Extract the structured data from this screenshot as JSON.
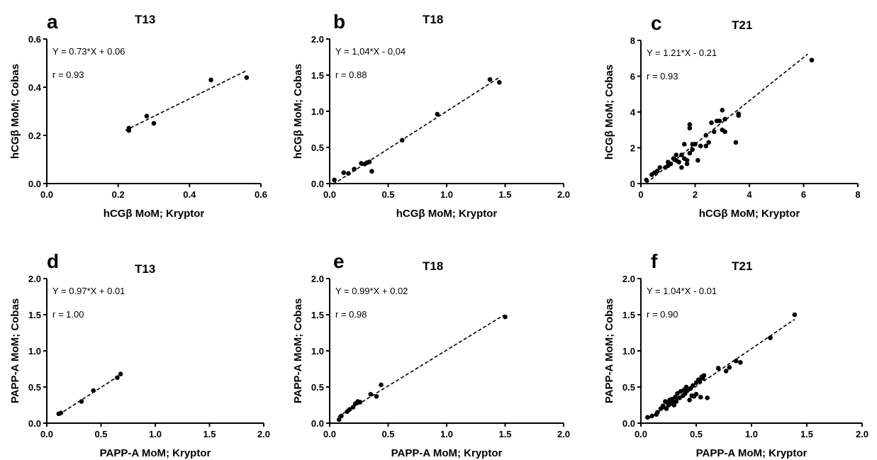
{
  "chart_data": [
    {
      "panel": "a",
      "title": "T13",
      "type": "scatter",
      "xlabel": "hCGβ MoM; Kryptor",
      "ylabel": "hCGβ MoM; Cobas",
      "xlim": [
        0,
        0.6
      ],
      "ylim": [
        0,
        0.6
      ],
      "xticks": [
        "0.0",
        "0.2",
        "0.4",
        "0.6"
      ],
      "yticks": [
        "0.0",
        "0.2",
        "0.4",
        "0.6"
      ],
      "equation": "Y = 0.73*X + 0.06",
      "r": "r = 0.93",
      "fit": {
        "slope": 0.73,
        "intercept": 0.06,
        "x_range": [
          0.22,
          0.56
        ]
      },
      "points": [
        [
          0.23,
          0.23
        ],
        [
          0.23,
          0.22
        ],
        [
          0.28,
          0.28
        ],
        [
          0.3,
          0.25
        ],
        [
          0.46,
          0.43
        ],
        [
          0.56,
          0.44
        ]
      ]
    },
    {
      "panel": "b",
      "title": "T18",
      "type": "scatter",
      "xlabel": "hCGβ MoM; Kryptor",
      "ylabel": "hCGβ MoM; Cobas",
      "xlim": [
        0,
        2.0
      ],
      "ylim": [
        0,
        2.0
      ],
      "xticks": [
        "0.0",
        "0.5",
        "1.0",
        "1.5",
        "2.0"
      ],
      "yticks": [
        "0.0",
        "0.5",
        "1.0",
        "1.5",
        "2.0"
      ],
      "equation": "Y = 1,04*X - 0,04",
      "r": "r = 0.88",
      "fit": {
        "slope": 1.04,
        "intercept": -0.04,
        "x_range": [
          0.03,
          1.46
        ]
      },
      "points": [
        [
          0.04,
          0.05
        ],
        [
          0.12,
          0.15
        ],
        [
          0.16,
          0.14
        ],
        [
          0.21,
          0.2
        ],
        [
          0.27,
          0.28
        ],
        [
          0.3,
          0.27
        ],
        [
          0.32,
          0.29
        ],
        [
          0.34,
          0.3
        ],
        [
          0.36,
          0.17
        ],
        [
          0.62,
          0.6
        ],
        [
          0.92,
          0.96
        ],
        [
          1.37,
          1.44
        ],
        [
          1.45,
          1.4
        ]
      ]
    },
    {
      "panel": "c",
      "title": "T21",
      "type": "scatter",
      "xlabel": "hCGβ MoM; Kryptor",
      "ylabel": "hCGβ MoM; Cobas",
      "xlim": [
        0,
        8
      ],
      "ylim": [
        0,
        8
      ],
      "xticks": [
        "0",
        "2",
        "4",
        "6",
        "8"
      ],
      "yticks": [
        "0",
        "2",
        "4",
        "6",
        "8"
      ],
      "equation": "Y = 1.21*X - 0.21",
      "r": "r = 0.93",
      "fit": {
        "slope": 1.21,
        "intercept": -0.21,
        "x_range": [
          0.2,
          6.15
        ]
      },
      "points": [
        [
          0.2,
          0.2
        ],
        [
          0.4,
          0.5
        ],
        [
          0.5,
          0.6
        ],
        [
          0.6,
          0.7
        ],
        [
          0.7,
          0.9
        ],
        [
          0.9,
          0.9
        ],
        [
          1.0,
          1.0
        ],
        [
          1.0,
          1.2
        ],
        [
          1.1,
          1.1
        ],
        [
          1.2,
          1.4
        ],
        [
          1.3,
          1.3
        ],
        [
          1.3,
          1.6
        ],
        [
          1.4,
          1.2
        ],
        [
          1.5,
          0.9
        ],
        [
          1.5,
          1.6
        ],
        [
          1.6,
          1.4
        ],
        [
          1.6,
          2.2
        ],
        [
          1.7,
          1.1
        ],
        [
          1.7,
          1.3
        ],
        [
          1.8,
          1.7
        ],
        [
          1.8,
          3.1
        ],
        [
          1.8,
          3.3
        ],
        [
          1.9,
          1.9
        ],
        [
          1.9,
          2.2
        ],
        [
          2.0,
          2.2
        ],
        [
          2.1,
          1.3
        ],
        [
          2.2,
          2.1
        ],
        [
          2.4,
          2.7
        ],
        [
          2.4,
          2.1
        ],
        [
          2.5,
          2.3
        ],
        [
          2.6,
          3.4
        ],
        [
          2.7,
          2.9
        ],
        [
          2.8,
          3.5
        ],
        [
          2.9,
          3.5
        ],
        [
          3.0,
          3.0
        ],
        [
          3.0,
          4.1
        ],
        [
          3.1,
          2.9
        ],
        [
          3.1,
          3.6
        ],
        [
          3.5,
          2.3
        ],
        [
          3.6,
          3.9
        ],
        [
          3.6,
          3.8
        ],
        [
          6.3,
          6.9
        ]
      ]
    },
    {
      "panel": "d",
      "title": "T13",
      "type": "scatter",
      "xlabel": "PAPP-A MoM; Kryptor",
      "ylabel": "PAPP-A MoM; Cobas",
      "xlim": [
        0,
        2.0
      ],
      "ylim": [
        0,
        2.0
      ],
      "xticks": [
        "0.0",
        "0.5",
        "1.0",
        "1.5",
        "2.0"
      ],
      "yticks": [
        "0.0",
        "0.5",
        "1.0",
        "1.5",
        "2.0"
      ],
      "equation": "Y = 0.97*X + 0.01",
      "r": "r = 1.00",
      "fit": {
        "slope": 0.97,
        "intercept": 0.01,
        "x_range": [
          0.11,
          0.68
        ]
      },
      "points": [
        [
          0.11,
          0.13
        ],
        [
          0.13,
          0.14
        ],
        [
          0.32,
          0.3
        ],
        [
          0.43,
          0.45
        ],
        [
          0.65,
          0.63
        ],
        [
          0.68,
          0.68
        ]
      ]
    },
    {
      "panel": "e",
      "title": "T18",
      "type": "scatter",
      "xlabel": "PAPP-A MoM; Kryptor",
      "ylabel": "PAPP-A MoM; Cobas",
      "xlim": [
        0,
        2.0
      ],
      "ylim": [
        0,
        2.0
      ],
      "xticks": [
        "0.0",
        "0.5",
        "1.0",
        "1.5",
        "2.0"
      ],
      "yticks": [
        "0.0",
        "0.5",
        "1.0",
        "1.5",
        "2.0"
      ],
      "equation": "Y = 0.99*X + 0.02",
      "r": "r = 0.98",
      "fit": {
        "slope": 0.99,
        "intercept": 0.02,
        "x_range": [
          0.07,
          1.49
        ]
      },
      "points": [
        [
          0.08,
          0.05
        ],
        [
          0.1,
          0.1
        ],
        [
          0.15,
          0.16
        ],
        [
          0.17,
          0.19
        ],
        [
          0.2,
          0.22
        ],
        [
          0.22,
          0.27
        ],
        [
          0.24,
          0.3
        ],
        [
          0.26,
          0.29
        ],
        [
          0.35,
          0.4
        ],
        [
          0.4,
          0.37
        ],
        [
          0.44,
          0.53
        ],
        [
          1.5,
          1.47
        ]
      ]
    },
    {
      "panel": "f",
      "title": "T21",
      "type": "scatter",
      "xlabel": "PAPP-A MoM; Kryptor",
      "ylabel": "PAPP-A MoM; Cobas",
      "xlim": [
        0,
        2.0
      ],
      "ylim": [
        0,
        2.0
      ],
      "xticks": [
        "0.0",
        "0.5",
        "1.0",
        "1.5",
        "2.0"
      ],
      "yticks": [
        "0.0",
        "0.5",
        "1.0",
        "1.5",
        "2.0"
      ],
      "equation": "Y = 1.04*X - 0.01",
      "r": "r = 0.90",
      "fit": {
        "slope": 1.04,
        "intercept": -0.01,
        "x_range": [
          0.06,
          1.39
        ]
      },
      "points": [
        [
          0.06,
          0.08
        ],
        [
          0.1,
          0.1
        ],
        [
          0.14,
          0.12
        ],
        [
          0.15,
          0.15
        ],
        [
          0.18,
          0.2
        ],
        [
          0.2,
          0.24
        ],
        [
          0.22,
          0.3
        ],
        [
          0.23,
          0.2
        ],
        [
          0.24,
          0.28
        ],
        [
          0.25,
          0.25
        ],
        [
          0.26,
          0.32
        ],
        [
          0.27,
          0.27
        ],
        [
          0.28,
          0.33
        ],
        [
          0.29,
          0.3
        ],
        [
          0.3,
          0.25
        ],
        [
          0.31,
          0.36
        ],
        [
          0.32,
          0.3
        ],
        [
          0.33,
          0.41
        ],
        [
          0.35,
          0.35
        ],
        [
          0.36,
          0.44
        ],
        [
          0.38,
          0.38
        ],
        [
          0.39,
          0.46
        ],
        [
          0.4,
          0.41
        ],
        [
          0.41,
          0.5
        ],
        [
          0.42,
          0.45
        ],
        [
          0.44,
          0.32
        ],
        [
          0.45,
          0.48
        ],
        [
          0.46,
          0.38
        ],
        [
          0.47,
          0.52
        ],
        [
          0.48,
          0.37
        ],
        [
          0.5,
          0.56
        ],
        [
          0.5,
          0.4
        ],
        [
          0.52,
          0.6
        ],
        [
          0.53,
          0.58
        ],
        [
          0.54,
          0.36
        ],
        [
          0.55,
          0.64
        ],
        [
          0.56,
          0.62
        ],
        [
          0.57,
          0.66
        ],
        [
          0.6,
          0.35
        ],
        [
          0.7,
          0.76
        ],
        [
          0.77,
          0.72
        ],
        [
          0.8,
          0.77
        ],
        [
          0.86,
          0.86
        ],
        [
          0.9,
          0.84
        ],
        [
          1.17,
          1.18
        ],
        [
          1.39,
          1.5
        ]
      ]
    }
  ]
}
